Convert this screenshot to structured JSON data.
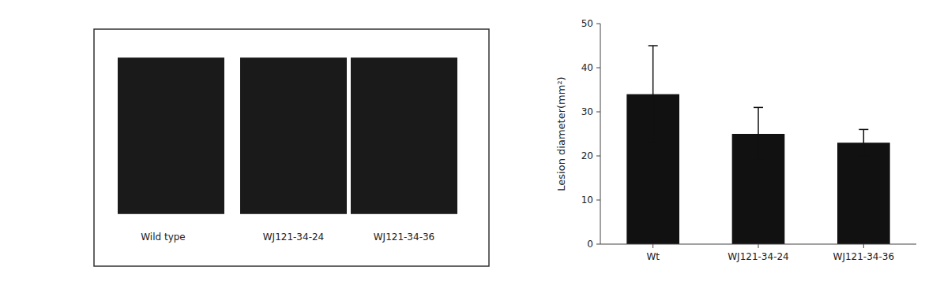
{
  "chart_data": {
    "type": "bar",
    "categories": [
      "Wt",
      "WJ121-34-24",
      "WJ121-34-36"
    ],
    "values": [
      34.0,
      25.0,
      23.0
    ],
    "errors": [
      11.0,
      6.0,
      3.0
    ],
    "color": "#111111",
    "ylabel": "Lesion diameter(mm²)",
    "ylim": [
      0,
      50
    ],
    "yticks": [
      0,
      10,
      20,
      30,
      40,
      50
    ],
    "grid": false,
    "annotations": [
      "Wild type",
      "WJ121-34-24",
      "WJ121-34-36"
    ]
  }
}
